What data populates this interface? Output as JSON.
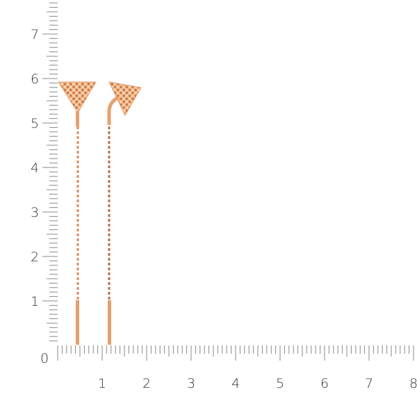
{
  "ruler": {
    "origin_label": "0",
    "y_labels": [
      "1",
      "2",
      "3",
      "4",
      "5",
      "6",
      "7"
    ],
    "x_labels": [
      "1",
      "2",
      "3",
      "4",
      "5",
      "6",
      "7",
      "8"
    ],
    "tick_color": "#888888"
  },
  "product": {
    "metal_color": "#e8a878",
    "items": [
      "left-earring",
      "right-earring"
    ]
  }
}
